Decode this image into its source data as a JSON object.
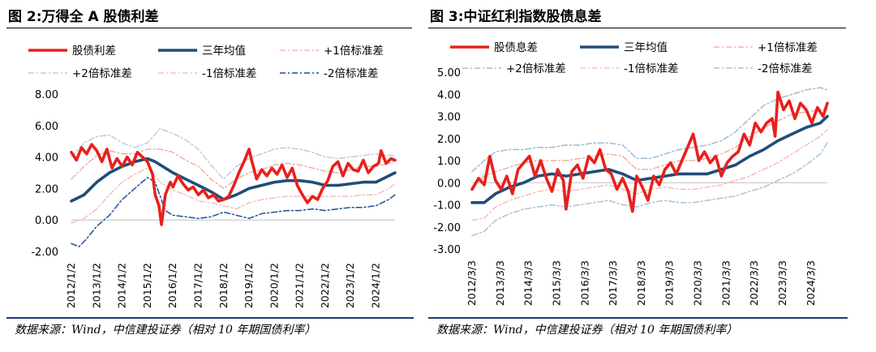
{
  "charts": [
    {
      "title": "图 2:万得全 A 股债利差",
      "source": "数据来源：Wind，中信建投证券（相对 10 年期国债利率）",
      "legend": [
        "股债利差",
        "三年均值",
        "+1倍标准差",
        "+2倍标准差",
        "-1倍标准差",
        "-2倍标准差"
      ],
      "y_ticks": [
        "8.00",
        "6.00",
        "4.00",
        "2.00",
        "0.00",
        "-2.00"
      ],
      "x_ticks": [
        "2012/1/2",
        "2013/1/2",
        "2014/1/2",
        "2015/1/2",
        "2016/1/2",
        "2017/1/2",
        "2018/1/2",
        "2019/1/2",
        "2020/1/2",
        "2021/1/2",
        "2022/1/2",
        "2023/1/2",
        "2024/1/2"
      ]
    },
    {
      "title": "图 3:中证红利指数股债息差",
      "source": "数据来源：Wind，中信建投证券（相对 10 年期国债利率）",
      "legend": [
        "股债息差",
        "三年均值",
        "+1倍标准差",
        "+2倍标准差",
        "-1倍标准差",
        "-2倍标准差"
      ],
      "y_ticks": [
        "5.00",
        "4.00",
        "3.00",
        "2.00",
        "1.00",
        "0.00",
        "-1.00",
        "-2.00",
        "-3.00"
      ],
      "x_ticks": [
        "2012/3/3",
        "2013/3/3",
        "2014/3/3",
        "2015/3/3",
        "2016/3/3",
        "2017/3/3",
        "2018/3/3",
        "2019/3/3",
        "2020/3/3",
        "2021/3/3",
        "2022/3/3",
        "2023/3/3",
        "2024/3/3"
      ]
    }
  ],
  "chart_data": [
    {
      "type": "line",
      "ylim": [
        -2,
        8
      ],
      "xlim": [
        2012.0,
        2024.75
      ],
      "colors": {
        "spread": "#e8201c",
        "mean": "#1f4e79",
        "p1": "#f0a39a",
        "p2": "#b9cfe0",
        "m1": "#f4b6ad",
        "m2": "#1f4e9a"
      },
      "series": [
        {
          "name": "股债利差",
          "x": [
            2012.0,
            2012.2,
            2012.4,
            2012.6,
            2012.8,
            2013.0,
            2013.2,
            2013.4,
            2013.6,
            2013.8,
            2014.0,
            2014.2,
            2014.4,
            2014.6,
            2014.8,
            2015.0,
            2015.2,
            2015.3,
            2015.45,
            2015.55,
            2015.7,
            2015.9,
            2016.0,
            2016.2,
            2016.4,
            2016.6,
            2016.8,
            2017.0,
            2017.2,
            2017.4,
            2017.6,
            2017.8,
            2018.0,
            2018.2,
            2018.4,
            2018.6,
            2018.8,
            2019.0,
            2019.1,
            2019.3,
            2019.5,
            2019.7,
            2019.9,
            2020.1,
            2020.3,
            2020.5,
            2020.7,
            2020.9,
            2021.1,
            2021.3,
            2021.5,
            2021.7,
            2021.9,
            2022.1,
            2022.3,
            2022.5,
            2022.7,
            2022.9,
            2023.1,
            2023.3,
            2023.5,
            2023.7,
            2023.9,
            2024.1,
            2024.2,
            2024.4,
            2024.6,
            2024.75
          ],
          "y": [
            4.3,
            3.8,
            4.6,
            4.2,
            4.8,
            4.4,
            3.7,
            4.5,
            3.3,
            3.9,
            3.4,
            4.0,
            3.5,
            4.3,
            4.0,
            3.7,
            2.9,
            1.6,
            0.9,
            -0.3,
            1.6,
            2.4,
            2.1,
            2.8,
            2.3,
            1.9,
            2.1,
            1.6,
            1.9,
            1.4,
            1.6,
            1.2,
            1.3,
            1.5,
            2.2,
            3.0,
            3.7,
            4.5,
            3.8,
            2.6,
            3.2,
            2.8,
            3.3,
            2.9,
            3.5,
            2.7,
            3.3,
            2.2,
            1.6,
            1.1,
            1.5,
            1.3,
            2.0,
            2.5,
            3.4,
            3.7,
            2.8,
            3.6,
            3.2,
            3.1,
            3.8,
            3.0,
            3.4,
            3.6,
            4.4,
            3.6,
            3.9,
            3.8
          ]
        },
        {
          "name": "三年均值",
          "x": [
            2012.0,
            2012.5,
            2013.0,
            2013.5,
            2014.0,
            2014.5,
            2015.0,
            2015.3,
            2015.7,
            2016.0,
            2016.5,
            2017.0,
            2017.5,
            2018.0,
            2018.5,
            2019.0,
            2019.5,
            2020.0,
            2020.5,
            2021.0,
            2021.5,
            2022.0,
            2022.5,
            2023.0,
            2023.5,
            2024.0,
            2024.5,
            2024.75
          ],
          "y": [
            1.2,
            1.6,
            2.4,
            3.0,
            3.4,
            3.7,
            3.9,
            3.7,
            3.3,
            3.0,
            2.6,
            2.2,
            1.8,
            1.3,
            1.6,
            2.0,
            2.2,
            2.4,
            2.5,
            2.5,
            2.4,
            2.2,
            2.2,
            2.3,
            2.4,
            2.4,
            2.8,
            3.0
          ]
        },
        {
          "name": "+1倍标准差",
          "x": [
            2012.0,
            2012.5,
            2013.0,
            2013.5,
            2014.0,
            2014.5,
            2015.0,
            2015.5,
            2016.0,
            2016.5,
            2017.0,
            2017.5,
            2018.0,
            2018.5,
            2019.0,
            2019.5,
            2020.0,
            2020.5,
            2021.0,
            2021.5,
            2022.0,
            2022.5,
            2023.0,
            2023.5,
            2024.0,
            2024.5,
            2024.75
          ],
          "y": [
            2.6,
            3.4,
            4.1,
            4.4,
            4.2,
            4.2,
            4.5,
            4.5,
            4.3,
            3.8,
            3.4,
            2.6,
            2.0,
            2.6,
            3.0,
            3.2,
            3.5,
            3.6,
            3.5,
            3.3,
            3.1,
            3.0,
            3.2,
            3.4,
            3.4,
            3.6,
            3.8
          ]
        },
        {
          "name": "+2倍标准差",
          "x": [
            2012.0,
            2012.5,
            2013.0,
            2013.5,
            2014.0,
            2014.5,
            2015.0,
            2015.5,
            2016.0,
            2016.5,
            2017.0,
            2017.5,
            2018.0,
            2018.5,
            2019.0,
            2019.5,
            2020.0,
            2020.5,
            2021.0,
            2021.5,
            2022.0,
            2022.5,
            2023.0,
            2023.5,
            2024.0,
            2024.5,
            2024.75
          ],
          "y": [
            4.0,
            4.9,
            5.3,
            5.4,
            4.9,
            4.6,
            4.9,
            5.8,
            5.5,
            5.1,
            4.5,
            3.5,
            2.6,
            3.4,
            3.9,
            4.2,
            4.5,
            4.6,
            4.5,
            4.3,
            4.0,
            3.9,
            4.0,
            4.1,
            4.2,
            4.1,
            4.1
          ]
        },
        {
          "name": "-1倍标准差",
          "x": [
            2012.0,
            2012.5,
            2013.0,
            2013.5,
            2014.0,
            2014.5,
            2015.0,
            2015.5,
            2016.0,
            2016.5,
            2017.0,
            2017.5,
            2018.0,
            2018.5,
            2019.0,
            2019.5,
            2020.0,
            2020.5,
            2021.0,
            2021.5,
            2022.0,
            2022.5,
            2023.0,
            2023.5,
            2024.0,
            2024.5,
            2024.75
          ],
          "y": [
            -0.2,
            0.1,
            0.7,
            1.6,
            2.4,
            2.9,
            3.3,
            2.4,
            1.9,
            1.6,
            1.2,
            1.1,
            0.9,
            0.7,
            1.1,
            1.3,
            1.4,
            1.5,
            1.5,
            1.5,
            1.5,
            1.5,
            1.5,
            1.6,
            1.6,
            2.0,
            2.3
          ]
        },
        {
          "name": "-2倍标准差",
          "x": [
            2012.0,
            2012.3,
            2012.6,
            2013.0,
            2013.5,
            2014.0,
            2014.5,
            2015.0,
            2015.3,
            2015.7,
            2016.0,
            2016.5,
            2017.0,
            2017.5,
            2018.0,
            2018.5,
            2019.0,
            2019.5,
            2020.0,
            2020.5,
            2021.0,
            2021.5,
            2022.0,
            2022.5,
            2023.0,
            2023.5,
            2024.0,
            2024.5,
            2024.75
          ],
          "y": [
            -1.5,
            -1.7,
            -1.2,
            -0.4,
            0.3,
            1.3,
            2.0,
            2.7,
            2.4,
            0.6,
            0.3,
            0.2,
            0.1,
            0.2,
            0.5,
            0.3,
            0.1,
            0.4,
            0.5,
            0.6,
            0.6,
            0.7,
            0.6,
            0.7,
            0.8,
            0.8,
            0.9,
            1.3,
            1.6
          ]
        }
      ]
    },
    {
      "type": "line",
      "ylim": [
        -3,
        5
      ],
      "xlim": [
        2012.17,
        2024.75
      ],
      "colors": {
        "spread": "#e8201c",
        "mean": "#1f4e79",
        "p1": "#f0a39a",
        "p2": "#9fbbd6",
        "m1": "#f4b6ad",
        "m2": "#a9c2d8"
      },
      "series": [
        {
          "name": "股债息差",
          "x": [
            2012.17,
            2012.4,
            2012.6,
            2012.8,
            2013.0,
            2013.2,
            2013.4,
            2013.6,
            2013.8,
            2014.0,
            2014.2,
            2014.4,
            2014.6,
            2014.8,
            2015.0,
            2015.2,
            2015.4,
            2015.5,
            2015.7,
            2015.9,
            2016.1,
            2016.3,
            2016.5,
            2016.7,
            2016.9,
            2017.1,
            2017.3,
            2017.5,
            2017.7,
            2017.85,
            2018.0,
            2018.2,
            2018.4,
            2018.6,
            2018.8,
            2019.0,
            2019.2,
            2019.4,
            2019.6,
            2019.8,
            2020.0,
            2020.2,
            2020.4,
            2020.6,
            2020.8,
            2021.0,
            2021.2,
            2021.4,
            2021.6,
            2021.8,
            2022.0,
            2022.2,
            2022.4,
            2022.6,
            2022.8,
            2022.9,
            2023.0,
            2023.2,
            2023.4,
            2023.6,
            2023.8,
            2024.0,
            2024.2,
            2024.4,
            2024.6,
            2024.75
          ],
          "y": [
            -0.3,
            0.2,
            -0.1,
            1.2,
            0.1,
            -0.3,
            0.3,
            -0.5,
            0.6,
            0.9,
            1.2,
            0.3,
            1.0,
            0.2,
            -0.4,
            0.6,
            0.1,
            -1.2,
            0.5,
            0.8,
            0.2,
            1.2,
            0.9,
            1.5,
            0.6,
            0.4,
            -0.3,
            0.2,
            -0.4,
            -1.3,
            0.3,
            -0.2,
            -0.8,
            0.3,
            -0.1,
            0.6,
            0.9,
            0.4,
            1.0,
            1.6,
            2.2,
            1.0,
            1.4,
            0.9,
            1.2,
            0.3,
            0.9,
            1.2,
            1.4,
            2.2,
            1.7,
            2.7,
            2.3,
            2.7,
            2.9,
            2.1,
            4.1,
            3.3,
            3.7,
            2.9,
            3.6,
            3.3,
            2.7,
            3.4,
            3.0,
            3.6
          ]
        },
        {
          "name": "三年均值",
          "x": [
            2012.17,
            2012.6,
            2013.0,
            2013.5,
            2014.0,
            2014.5,
            2015.0,
            2015.5,
            2016.0,
            2016.5,
            2017.0,
            2017.5,
            2018.0,
            2018.5,
            2019.0,
            2019.5,
            2020.0,
            2020.5,
            2021.0,
            2021.5,
            2022.0,
            2022.5,
            2023.0,
            2023.5,
            2024.0,
            2024.5,
            2024.75
          ],
          "y": [
            -0.9,
            -0.9,
            -0.5,
            -0.2,
            0.0,
            0.3,
            0.4,
            0.3,
            0.4,
            0.5,
            0.6,
            0.4,
            0.1,
            0.2,
            0.3,
            0.4,
            0.4,
            0.4,
            0.6,
            0.8,
            1.2,
            1.5,
            1.9,
            2.2,
            2.5,
            2.7,
            3.0
          ]
        },
        {
          "name": "+1倍标准差",
          "x": [
            2012.17,
            2012.6,
            2013.0,
            2013.5,
            2014.0,
            2014.5,
            2015.0,
            2015.5,
            2016.0,
            2016.5,
            2017.0,
            2017.5,
            2018.0,
            2018.5,
            2019.0,
            2019.5,
            2020.0,
            2020.5,
            2021.0,
            2021.5,
            2022.0,
            2022.5,
            2023.0,
            2023.5,
            2024.0,
            2024.5,
            2024.75
          ],
          "y": [
            -0.2,
            0.3,
            0.5,
            0.7,
            0.9,
            1.0,
            1.0,
            1.0,
            1.1,
            1.2,
            1.3,
            1.2,
            0.6,
            0.6,
            0.8,
            1.0,
            1.0,
            1.1,
            1.3,
            1.6,
            2.1,
            2.5,
            2.8,
            3.1,
            3.2,
            3.3,
            3.3
          ]
        },
        {
          "name": "+2倍标准差",
          "x": [
            2012.17,
            2012.6,
            2013.0,
            2013.5,
            2014.0,
            2014.5,
            2015.0,
            2015.5,
            2016.0,
            2016.5,
            2017.0,
            2017.5,
            2018.0,
            2018.5,
            2019.0,
            2019.5,
            2020.0,
            2020.5,
            2021.0,
            2021.5,
            2022.0,
            2022.5,
            2023.0,
            2023.5,
            2024.0,
            2024.5,
            2024.75
          ],
          "y": [
            0.5,
            1.0,
            1.4,
            1.5,
            1.5,
            1.6,
            1.6,
            1.7,
            1.7,
            1.8,
            1.8,
            1.7,
            1.1,
            1.1,
            1.3,
            1.5,
            1.6,
            1.7,
            1.9,
            2.3,
            2.9,
            3.5,
            3.8,
            4.0,
            4.2,
            4.3,
            4.2
          ]
        },
        {
          "name": "-1倍标准差",
          "x": [
            2012.17,
            2012.6,
            2013.0,
            2013.5,
            2014.0,
            2014.5,
            2015.0,
            2015.5,
            2016.0,
            2016.5,
            2017.0,
            2017.5,
            2018.0,
            2018.5,
            2019.0,
            2019.5,
            2020.0,
            2020.5,
            2021.0,
            2021.5,
            2022.0,
            2022.5,
            2023.0,
            2023.5,
            2024.0,
            2024.5,
            2024.75
          ],
          "y": [
            -1.7,
            -1.6,
            -1.1,
            -0.8,
            -0.6,
            -0.4,
            -0.3,
            -0.4,
            -0.3,
            -0.2,
            -0.1,
            -0.3,
            -0.5,
            -0.3,
            -0.2,
            -0.3,
            -0.3,
            -0.2,
            -0.1,
            0.1,
            0.3,
            0.6,
            0.9,
            1.3,
            1.7,
            2.1,
            2.4
          ]
        },
        {
          "name": "-2倍标准差",
          "x": [
            2012.17,
            2012.6,
            2013.0,
            2013.5,
            2014.0,
            2014.5,
            2015.0,
            2015.5,
            2016.0,
            2016.5,
            2017.0,
            2017.5,
            2018.0,
            2018.5,
            2019.0,
            2019.5,
            2020.0,
            2020.5,
            2021.0,
            2021.5,
            2022.0,
            2022.5,
            2023.0,
            2023.5,
            2024.0,
            2024.5,
            2024.75
          ],
          "y": [
            -2.4,
            -2.2,
            -1.7,
            -1.4,
            -1.2,
            -1.1,
            -1.0,
            -1.1,
            -1.0,
            -0.9,
            -0.8,
            -1.0,
            -1.1,
            -0.9,
            -0.8,
            -0.9,
            -0.9,
            -0.8,
            -0.7,
            -0.6,
            -0.4,
            -0.2,
            0.1,
            0.4,
            0.8,
            1.3,
            1.8
          ]
        }
      ]
    }
  ]
}
